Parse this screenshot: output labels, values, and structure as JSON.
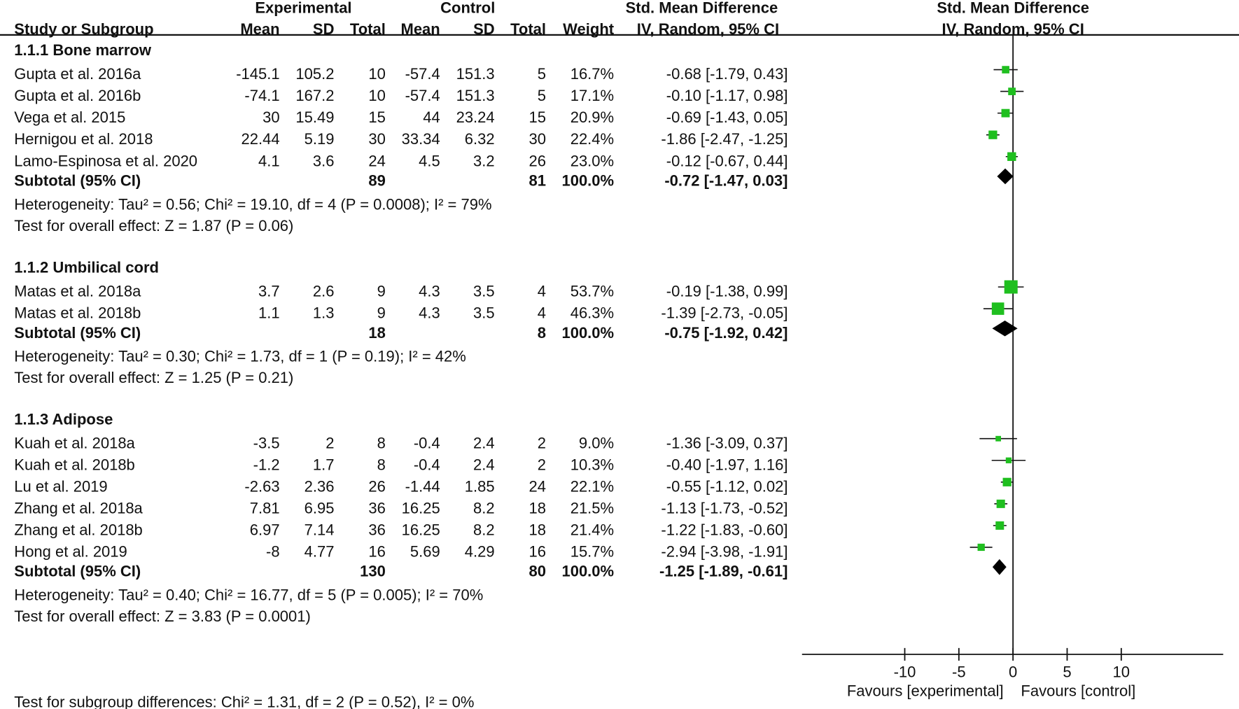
{
  "header": {
    "experimental": "Experimental",
    "control": "Control",
    "smd_title": "Std. Mean Difference",
    "smd_method": "IV, Random, 95% CI",
    "plot_title": "Std. Mean Difference",
    "plot_method": "IV, Random, 95% CI",
    "columns": [
      "Study or Subgroup",
      "Mean",
      "SD",
      "Total",
      "Mean",
      "SD",
      "Total",
      "Weight"
    ]
  },
  "chart_data": {
    "type": "forest",
    "xlim": [
      -10,
      10
    ],
    "xticks": [
      "-10",
      "-5",
      "0",
      "5",
      "10"
    ],
    "xtick_values": [
      -10,
      -5,
      0,
      5,
      10
    ],
    "left_label": "Favours [experimental]",
    "right_label": "Favours [control]",
    "colors": {
      "study_marker": "#1fbf1f",
      "subtotal_marker": "#000000"
    },
    "groups": [
      {
        "title": "1.1.1 Bone marrow",
        "studies": [
          {
            "name": "Gupta et al. 2016a",
            "exp_mean": "-145.1",
            "exp_sd": "105.2",
            "exp_total": "10",
            "ctl_mean": "-57.4",
            "ctl_sd": "151.3",
            "ctl_total": "5",
            "weight": "16.7%",
            "ci": "-0.68 [-1.79, 0.43]"
          },
          {
            "name": "Gupta et al. 2016b",
            "exp_mean": "-74.1",
            "exp_sd": "167.2",
            "exp_total": "10",
            "ctl_mean": "-57.4",
            "ctl_sd": "151.3",
            "ctl_total": "5",
            "weight": "17.1%",
            "ci": "-0.10 [-1.17, 0.98]"
          },
          {
            "name": "Vega et al. 2015",
            "exp_mean": "30",
            "exp_sd": "15.49",
            "exp_total": "15",
            "ctl_mean": "44",
            "ctl_sd": "23.24",
            "ctl_total": "15",
            "weight": "20.9%",
            "ci": "-0.69 [-1.43, 0.05]"
          },
          {
            "name": "Hernigou et al. 2018",
            "exp_mean": "22.44",
            "exp_sd": "5.19",
            "exp_total": "30",
            "ctl_mean": "33.34",
            "ctl_sd": "6.32",
            "ctl_total": "30",
            "weight": "22.4%",
            "ci": "-1.86 [-2.47, -1.25]"
          },
          {
            "name": "Lamo-Espinosa et al. 2020",
            "exp_mean": "4.1",
            "exp_sd": "3.6",
            "exp_total": "24",
            "ctl_mean": "4.5",
            "ctl_sd": "3.2",
            "ctl_total": "26",
            "weight": "23.0%",
            "ci": "-0.12 [-0.67, 0.44]"
          }
        ],
        "subtotal": {
          "label": "Subtotal (95% CI)",
          "exp_total": "89",
          "ctl_total": "81",
          "weight": "100.0%",
          "ci": "-0.72 [-1.47, 0.03]"
        },
        "heterogeneity": "Heterogeneity: Tau² = 0.56; Chi² = 19.10, df = 4 (P = 0.0008); I² = 79%",
        "overall": "Test for overall effect: Z = 1.87 (P = 0.06)"
      },
      {
        "title": "1.1.2 Umbilical cord",
        "studies": [
          {
            "name": "Matas et al. 2018a",
            "exp_mean": "3.7",
            "exp_sd": "2.6",
            "exp_total": "9",
            "ctl_mean": "4.3",
            "ctl_sd": "3.5",
            "ctl_total": "4",
            "weight": "53.7%",
            "ci": "-0.19 [-1.38, 0.99]"
          },
          {
            "name": "Matas et al. 2018b",
            "exp_mean": "1.1",
            "exp_sd": "1.3",
            "exp_total": "9",
            "ctl_mean": "4.3",
            "ctl_sd": "3.5",
            "ctl_total": "4",
            "weight": "46.3%",
            "ci": "-1.39 [-2.73, -0.05]"
          }
        ],
        "subtotal": {
          "label": "Subtotal (95% CI)",
          "exp_total": "18",
          "ctl_total": "8",
          "weight": "100.0%",
          "ci": "-0.75 [-1.92, 0.42]"
        },
        "heterogeneity": "Heterogeneity: Tau² = 0.30; Chi² = 1.73, df = 1 (P = 0.19); I² = 42%",
        "overall": "Test for overall effect: Z = 1.25 (P = 0.21)"
      },
      {
        "title": "1.1.3 Adipose",
        "studies": [
          {
            "name": "Kuah et al. 2018a",
            "exp_mean": "-3.5",
            "exp_sd": "2",
            "exp_total": "8",
            "ctl_mean": "-0.4",
            "ctl_sd": "2.4",
            "ctl_total": "2",
            "weight": "9.0%",
            "ci": "-1.36 [-3.09, 0.37]"
          },
          {
            "name": "Kuah et al. 2018b",
            "exp_mean": "-1.2",
            "exp_sd": "1.7",
            "exp_total": "8",
            "ctl_mean": "-0.4",
            "ctl_sd": "2.4",
            "ctl_total": "2",
            "weight": "10.3%",
            "ci": "-0.40 [-1.97, 1.16]"
          },
          {
            "name": "Lu et al. 2019",
            "exp_mean": "-2.63",
            "exp_sd": "2.36",
            "exp_total": "26",
            "ctl_mean": "-1.44",
            "ctl_sd": "1.85",
            "ctl_total": "24",
            "weight": "22.1%",
            "ci": "-0.55 [-1.12, 0.02]"
          },
          {
            "name": "Zhang et al. 2018a",
            "exp_mean": "7.81",
            "exp_sd": "6.95",
            "exp_total": "36",
            "ctl_mean": "16.25",
            "ctl_sd": "8.2",
            "ctl_total": "18",
            "weight": "21.5%",
            "ci": "-1.13 [-1.73, -0.52]"
          },
          {
            "name": "Zhang et al. 2018b",
            "exp_mean": "6.97",
            "exp_sd": "7.14",
            "exp_total": "36",
            "ctl_mean": "16.25",
            "ctl_sd": "8.2",
            "ctl_total": "18",
            "weight": "21.4%",
            "ci": "-1.22 [-1.83, -0.60]"
          },
          {
            "name": "Hong et al. 2019",
            "exp_mean": "-8",
            "exp_sd": "4.77",
            "exp_total": "16",
            "ctl_mean": "5.69",
            "ctl_sd": "4.29",
            "ctl_total": "16",
            "weight": "15.7%",
            "ci": "-2.94 [-3.98, -1.91]"
          }
        ],
        "subtotal": {
          "label": "Subtotal (95% CI)",
          "exp_total": "130",
          "ctl_total": "80",
          "weight": "100.0%",
          "ci": "-1.25 [-1.89, -0.61]"
        },
        "heterogeneity": "Heterogeneity: Tau² = 0.40; Chi² = 16.77, df = 5 (P = 0.005); I² = 70%",
        "overall": "Test for overall effect: Z = 3.83 (P = 0.0001)"
      }
    ],
    "subgroup_differences": "Test for subgroup differences: Chi² = 1.31, df = 2 (P = 0.52), I² = 0%"
  }
}
